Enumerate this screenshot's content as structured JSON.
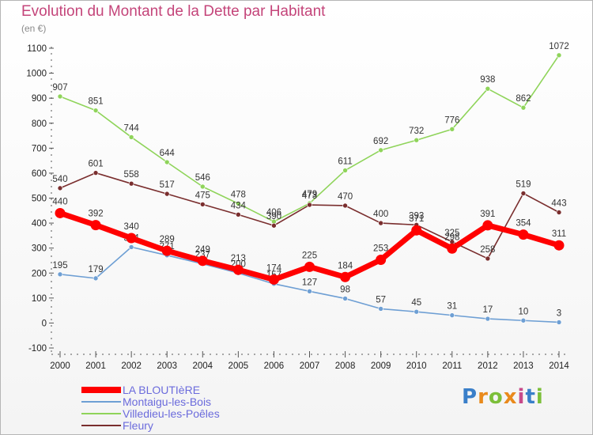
{
  "title": "Evolution du Montant de la Dette par Habitant",
  "unit": "(en €)",
  "logo": {
    "text": "Proxiti",
    "colors": [
      "#3a7fc9",
      "#e98a1c",
      "#7cbf3a",
      "#e98a1c",
      "#c84a8a",
      "#3a7fc9",
      "#7cbf3a"
    ]
  },
  "chart_data": {
    "type": "line",
    "x": [
      "2000",
      "2001",
      "2002",
      "2003",
      "2004",
      "2005",
      "2006",
      "2007",
      "2008",
      "2009",
      "2010",
      "2011",
      "2012",
      "2013",
      "2014"
    ],
    "ylim": [
      -100,
      1100
    ],
    "yticks": [
      -100,
      0,
      100,
      200,
      300,
      400,
      500,
      600,
      700,
      800,
      900,
      1000,
      1100
    ],
    "grid": false,
    "legend": "bottom-left",
    "series": [
      {
        "name": "LA BLOUTIèRE",
        "color": "#ff0000",
        "values": [
          440,
          392,
          340,
          289,
          249,
          213,
          174,
          225,
          184,
          253,
          371,
          298,
          391,
          354,
          311
        ]
      },
      {
        "name": "Montaigu-les-Bois",
        "color": "#6e9fd4",
        "values": [
          195,
          179,
          304,
          271,
          237,
          200,
          157,
          127,
          98,
          57,
          45,
          31,
          17,
          10,
          3
        ]
      },
      {
        "name": "Villedieu-les-Poêles",
        "color": "#8fd45a",
        "values": [
          907,
          851,
          744,
          644,
          546,
          478,
          406,
          479,
          611,
          692,
          732,
          776,
          938,
          862,
          1072
        ]
      },
      {
        "name": "Fleury",
        "color": "#7a2e2e",
        "values": [
          540,
          601,
          558,
          517,
          475,
          434,
          390,
          473,
          470,
          400,
          393,
          325,
          258,
          519,
          443
        ]
      }
    ]
  }
}
